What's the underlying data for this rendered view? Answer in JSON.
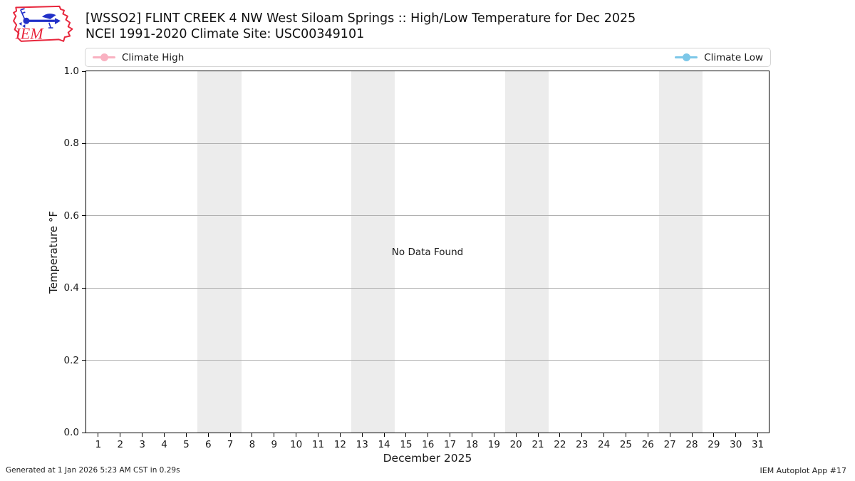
{
  "header": {
    "title_line1": "[WSSO2] FLINT CREEK 4 NW West Siloam Springs :: High/Low Temperature for Dec 2025",
    "title_line2": "NCEI 1991-2020 Climate Site: USC00349101",
    "logo_text": "IEM"
  },
  "legend": {
    "items": [
      {
        "label": "Climate High",
        "color": "#f9b1c1"
      },
      {
        "label": "Climate Low",
        "color": "#7cc7e8"
      }
    ]
  },
  "chart_data": {
    "type": "line",
    "title": "[WSSO2] FLINT CREEK 4 NW West Siloam Springs :: High/Low Temperature for Dec 2025",
    "subtitle": "NCEI 1991-2020 Climate Site: USC00349101",
    "xlabel": "December 2025",
    "ylabel": "Temperature °F",
    "annotation": "No Data Found",
    "grid": true,
    "legend_position": "top, spanning plot width",
    "xlim": [
      0.45,
      31.5
    ],
    "ylim": [
      0.0,
      1.0
    ],
    "x_ticks": [
      1,
      2,
      3,
      4,
      5,
      6,
      7,
      8,
      9,
      10,
      11,
      12,
      13,
      14,
      15,
      16,
      17,
      18,
      19,
      20,
      21,
      22,
      23,
      24,
      25,
      26,
      27,
      28,
      29,
      30,
      31
    ],
    "y_ticks": [
      "0.0",
      "0.2",
      "0.4",
      "0.6",
      "0.8",
      "1.0"
    ],
    "weekend_bands": [
      [
        5.5,
        7.5
      ],
      [
        12.5,
        14.5
      ],
      [
        19.5,
        21.5
      ],
      [
        26.5,
        28.5
      ]
    ],
    "band_color": "#ececec",
    "gridline_color": "#b0b0b0",
    "series": [
      {
        "name": "Climate High",
        "color": "#f9b1c1",
        "x": [],
        "values": []
      },
      {
        "name": "Climate Low",
        "color": "#7cc7e8",
        "x": [],
        "values": []
      }
    ]
  },
  "footer": {
    "left": "Generated at 1 Jan 2026 5:23 AM CST in 0.29s",
    "right": "IEM Autoplot App #17"
  }
}
